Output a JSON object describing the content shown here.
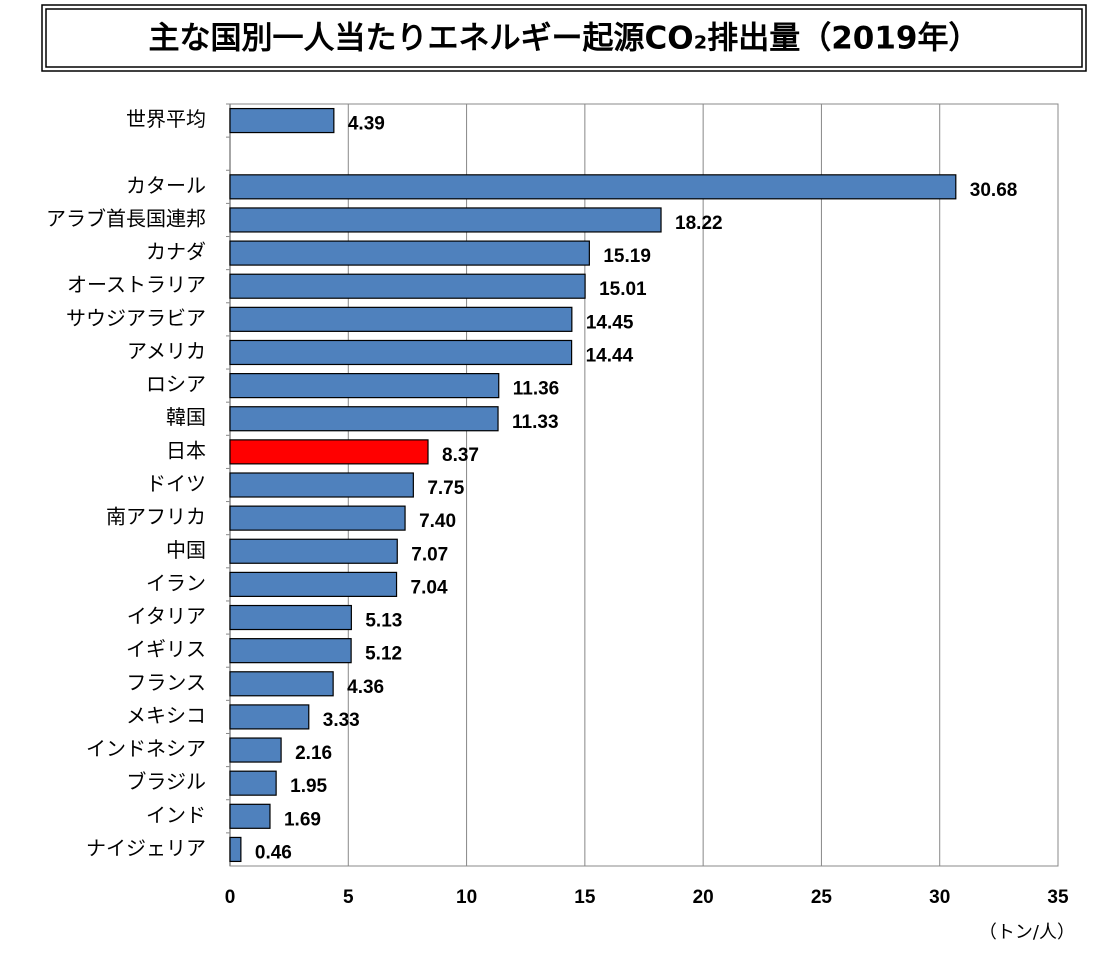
{
  "chart_data": {
    "type": "bar",
    "orientation": "horizontal",
    "title": "主な国別一人当たりエネルギー起源CO₂排出量（2019年）",
    "x_axis_label": "（トン/人）",
    "categories": [
      "世界平均",
      null,
      "カタール",
      "アラブ首長国連邦",
      "カナダ",
      "オーストラリア",
      "サウジアラビア",
      "アメリカ",
      "ロシア",
      "韓国",
      "日本",
      "ドイツ",
      "南アフリカ",
      "中国",
      "イラン",
      "イタリア",
      "イギリス",
      "フランス",
      "メキシコ",
      "インドネシア",
      "ブラジル",
      "インド",
      "ナイジェリア"
    ],
    "values": [
      4.39,
      null,
      30.68,
      18.22,
      15.19,
      15.01,
      14.45,
      14.44,
      11.36,
      11.33,
      8.37,
      7.75,
      7.4,
      7.07,
      7.04,
      5.13,
      5.12,
      4.36,
      3.33,
      2.16,
      1.95,
      1.69,
      0.46
    ],
    "value_labels": [
      "4.39",
      null,
      "30.68",
      "18.22",
      "15.19",
      "15.01",
      "14.45",
      "14.44",
      "11.36",
      "11.33",
      "8.37",
      "7.75",
      "7.40",
      "7.07",
      "7.04",
      "5.13",
      "5.12",
      "4.36",
      "3.33",
      "2.16",
      "1.95",
      "1.69",
      "0.46"
    ],
    "colors": [
      "#4f81bd",
      null,
      "#4f81bd",
      "#4f81bd",
      "#4f81bd",
      "#4f81bd",
      "#4f81bd",
      "#4f81bd",
      "#4f81bd",
      "#4f81bd",
      "#ff0000",
      "#4f81bd",
      "#4f81bd",
      "#4f81bd",
      "#4f81bd",
      "#4f81bd",
      "#4f81bd",
      "#4f81bd",
      "#4f81bd",
      "#4f81bd",
      "#4f81bd",
      "#4f81bd",
      "#4f81bd"
    ],
    "xlim": [
      0,
      35
    ],
    "xticks": [
      0,
      5,
      10,
      15,
      20,
      25,
      30,
      35
    ],
    "grid": true
  }
}
